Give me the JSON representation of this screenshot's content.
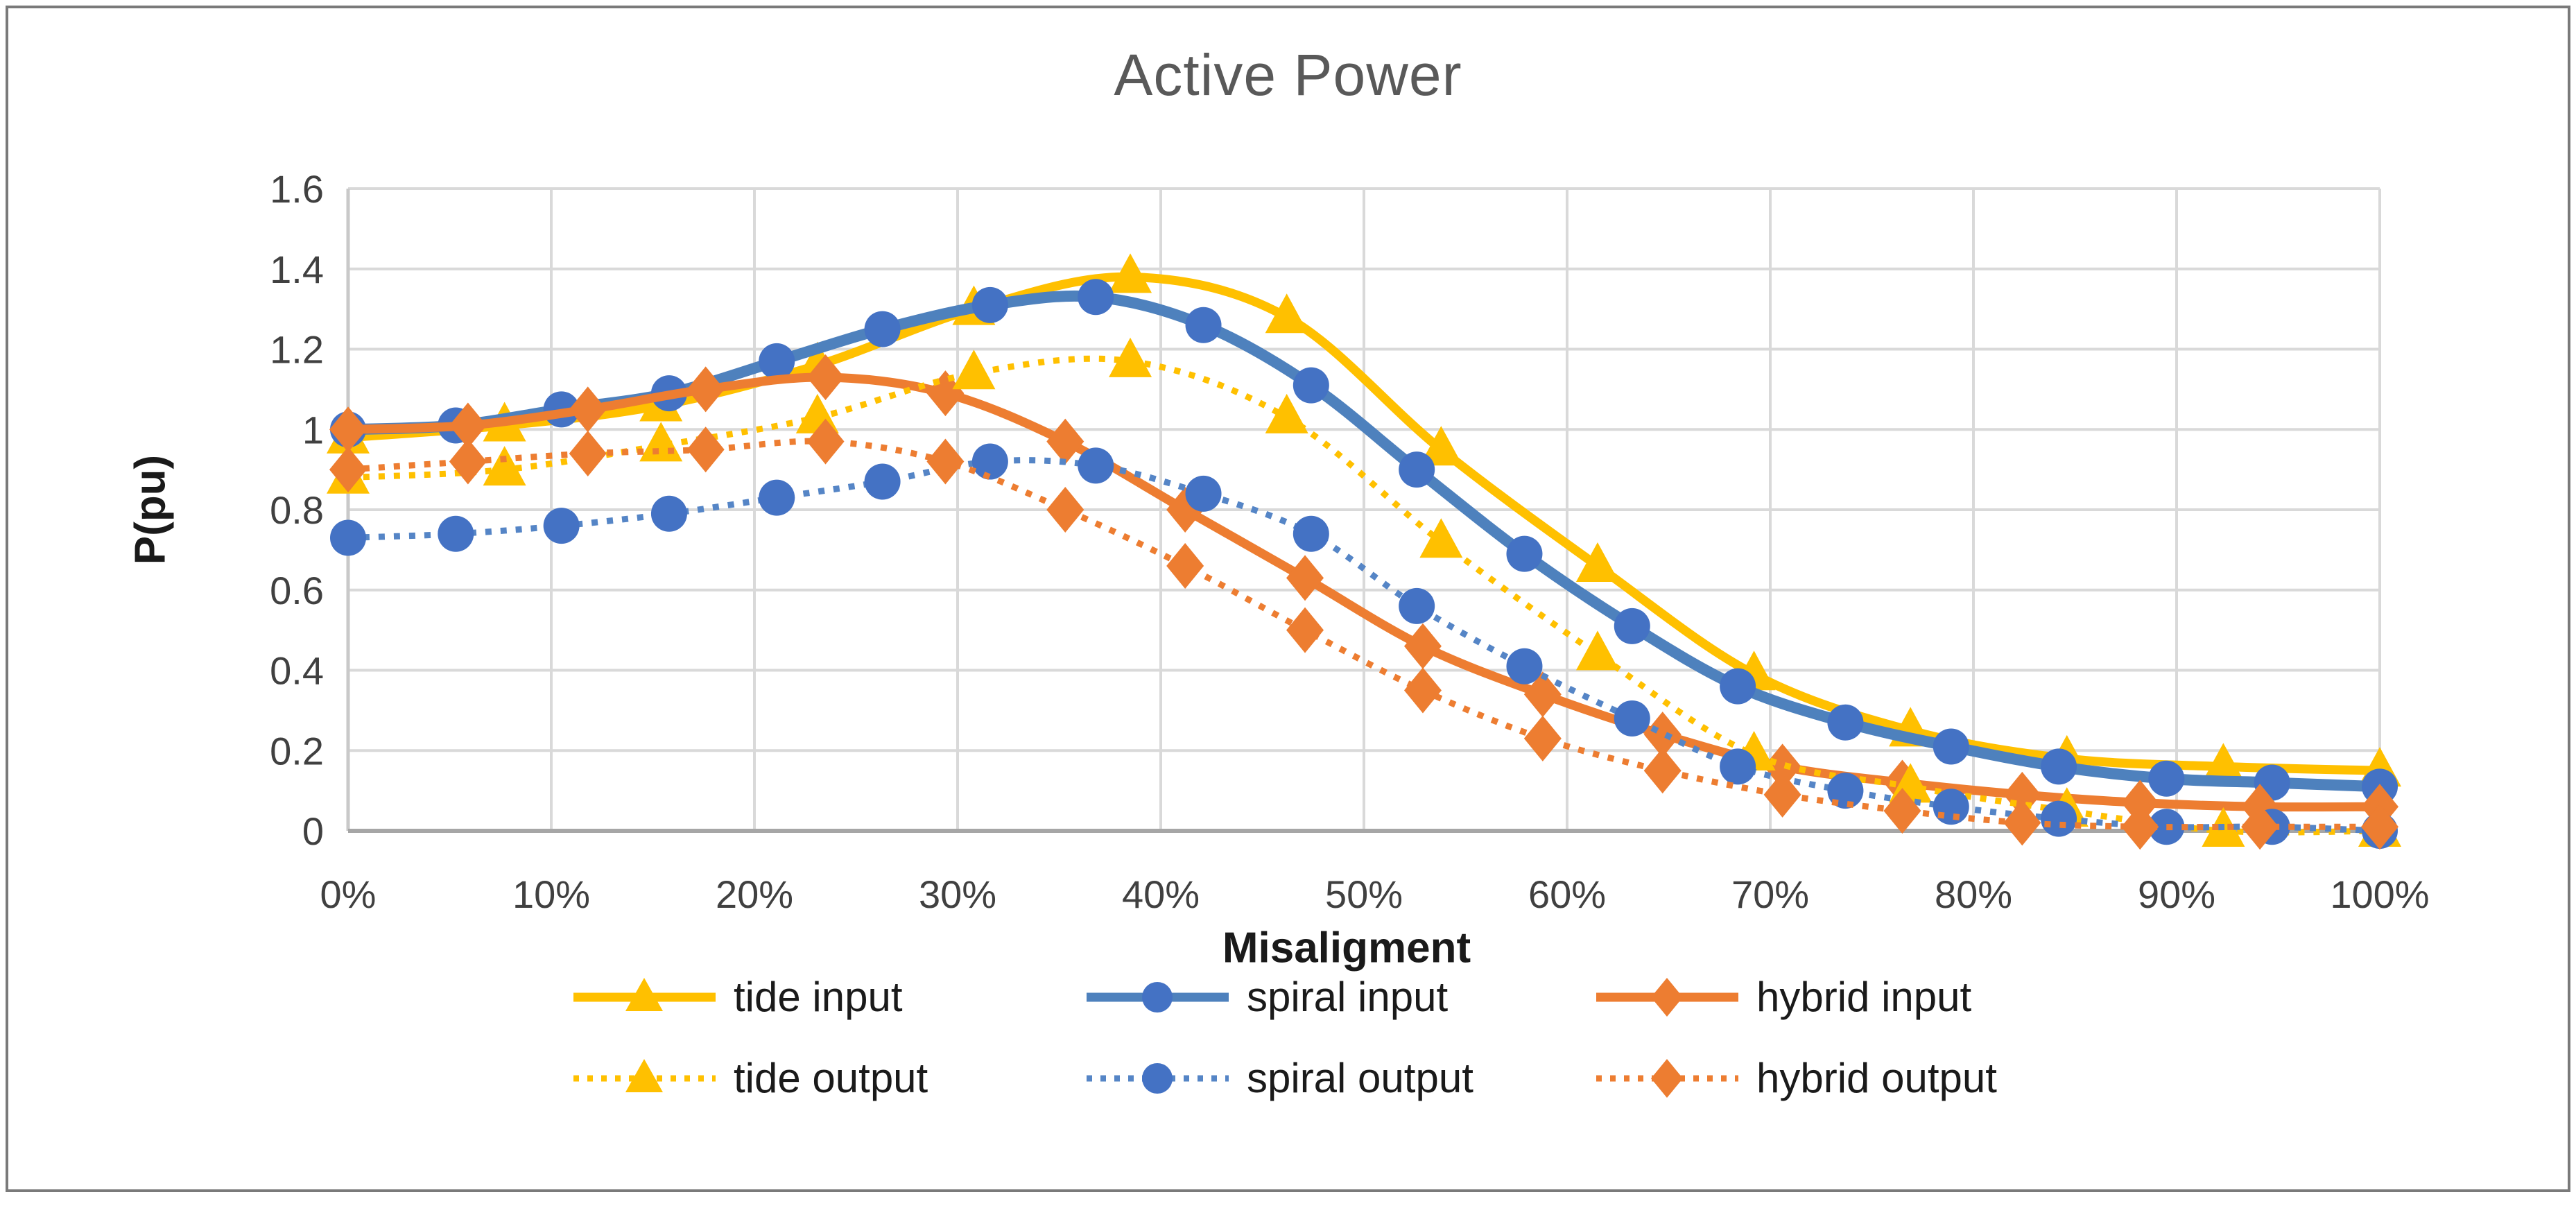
{
  "frame": {
    "background": "#FFFFFF",
    "border_color": "#7A7A7A"
  },
  "chart": {
    "title": "Active Power",
    "title_color": "#595959",
    "grid_color": "#D9D9D9",
    "axis_color": "#A6A6A6",
    "tick_label_color": "#404040",
    "y_axis": {
      "label": "P(pu)",
      "tick_labels": [
        "1.6",
        "1.4",
        "1.2",
        "1",
        "0.8",
        "0.6",
        "0.4",
        "0.2",
        "0"
      ]
    },
    "x_axis": {
      "label": "Misaligment",
      "tick_labels": [
        "0%",
        "10%",
        "20%",
        "30%",
        "40%",
        "50%",
        "60%",
        "70%",
        "80%",
        "90%",
        "100%"
      ]
    }
  },
  "chart_data": {
    "type": "line",
    "title": "Active Power",
    "xlabel": "Misaligment",
    "ylabel": "P(pu)",
    "xlim": [
      0,
      100
    ],
    "ylim": [
      0,
      1.6
    ],
    "x_tick_step_percent": 10,
    "y_tick_step": 0.2,
    "grid": true,
    "legend_position": "bottom",
    "series": [
      {
        "name": "tide input",
        "color": "#FFC000",
        "line_style": "solid",
        "marker": "triangle",
        "x": [
          0,
          7.7,
          15.4,
          23.1,
          30.8,
          38.5,
          46.2,
          53.8,
          61.5,
          69.2,
          76.9,
          84.6,
          92.3,
          100
        ],
        "y": [
          0.98,
          1.01,
          1.06,
          1.16,
          1.3,
          1.38,
          1.28,
          0.95,
          0.66,
          0.39,
          0.25,
          0.18,
          0.16,
          0.15
        ]
      },
      {
        "name": "spiral input",
        "color": "#4472C4",
        "line_color": "#4E81BD",
        "line_style": "solid",
        "marker": "circle",
        "x": [
          0,
          5.3,
          10.5,
          15.8,
          21.1,
          26.3,
          31.6,
          36.8,
          42.1,
          47.4,
          52.6,
          57.9,
          63.2,
          68.4,
          73.7,
          78.9,
          84.2,
          89.5,
          94.7,
          100
        ],
        "y": [
          1.0,
          1.01,
          1.05,
          1.09,
          1.17,
          1.25,
          1.31,
          1.33,
          1.26,
          1.11,
          0.9,
          0.69,
          0.51,
          0.36,
          0.27,
          0.21,
          0.16,
          0.13,
          0.12,
          0.11
        ]
      },
      {
        "name": "hybrid input",
        "color": "#ED7D31",
        "line_style": "solid",
        "marker": "diamond",
        "x": [
          0,
          5.9,
          11.8,
          17.6,
          23.5,
          29.4,
          35.3,
          41.2,
          47.1,
          52.9,
          58.8,
          64.7,
          70.6,
          76.5,
          82.4,
          88.2,
          94.1,
          100
        ],
        "y": [
          1.0,
          1.01,
          1.05,
          1.1,
          1.13,
          1.09,
          0.97,
          0.8,
          0.63,
          0.46,
          0.34,
          0.24,
          0.16,
          0.12,
          0.09,
          0.07,
          0.06,
          0.06
        ]
      },
      {
        "name": "tide output",
        "color": "#FFC000",
        "line_style": "dotted",
        "marker": "triangle",
        "x": [
          0,
          7.7,
          15.4,
          23.1,
          30.8,
          38.5,
          46.2,
          53.8,
          61.5,
          69.2,
          76.9,
          84.6,
          92.3,
          100
        ],
        "y": [
          0.88,
          0.9,
          0.96,
          1.03,
          1.14,
          1.17,
          1.03,
          0.72,
          0.44,
          0.19,
          0.11,
          0.05,
          0.0,
          0.0
        ]
      },
      {
        "name": "spiral output",
        "color": "#4472C4",
        "line_color": "#5585C6",
        "line_style": "dotted",
        "marker": "circle",
        "x": [
          0,
          5.3,
          10.5,
          15.8,
          21.1,
          26.3,
          31.6,
          36.8,
          42.1,
          47.4,
          52.6,
          57.9,
          63.2,
          68.4,
          73.7,
          78.9,
          84.2,
          89.5,
          94.7,
          100
        ],
        "y": [
          0.73,
          0.74,
          0.76,
          0.79,
          0.83,
          0.87,
          0.92,
          0.91,
          0.84,
          0.74,
          0.56,
          0.41,
          0.28,
          0.16,
          0.1,
          0.06,
          0.03,
          0.01,
          0.01,
          0.0
        ]
      },
      {
        "name": "hybrid output",
        "color": "#ED7D31",
        "line_style": "dotted",
        "marker": "diamond",
        "x": [
          0,
          5.9,
          11.8,
          17.6,
          23.5,
          29.4,
          35.3,
          41.2,
          47.1,
          52.9,
          58.8,
          64.7,
          70.6,
          76.5,
          82.4,
          88.2,
          94.1,
          100
        ],
        "y": [
          0.9,
          0.92,
          0.94,
          0.95,
          0.97,
          0.92,
          0.8,
          0.66,
          0.5,
          0.35,
          0.23,
          0.15,
          0.09,
          0.05,
          0.02,
          0.01,
          0.01,
          0.01
        ]
      }
    ]
  }
}
